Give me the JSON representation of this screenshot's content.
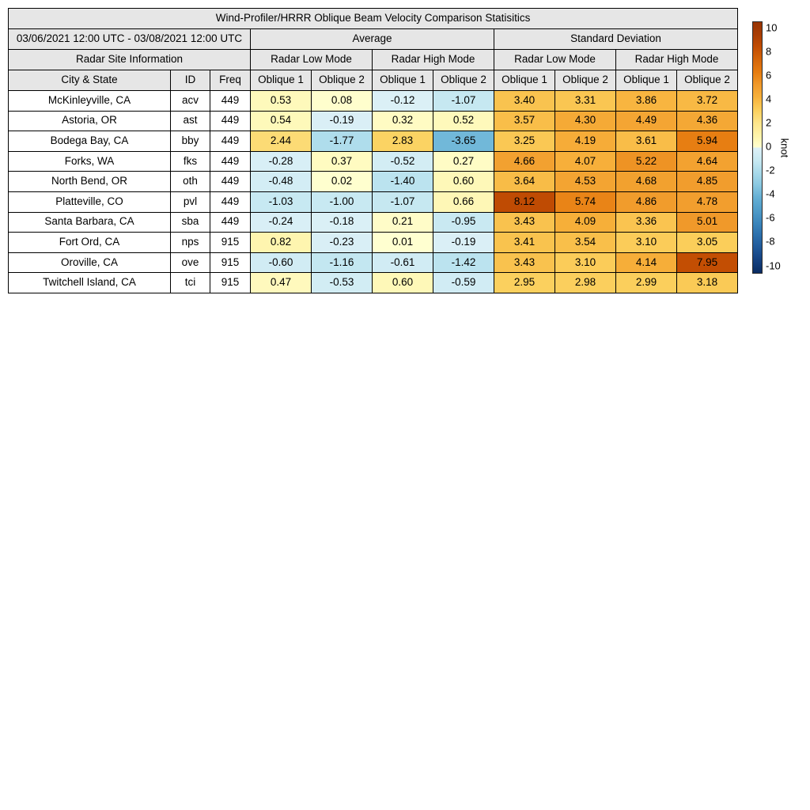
{
  "title": "Wind-Profiler/HRRR Oblique Beam Velocity Comparison Statisitics",
  "table": {
    "date_range": "03/06/2021 12:00 UTC - 03/08/2021 12:00 UTC",
    "avg_label": "Average",
    "std_label": "Standard Deviation",
    "site_info_label": "Radar Site Information",
    "mode_labels": [
      "Radar Low Mode",
      "Radar High Mode",
      "Radar Low Mode",
      "Radar High Mode"
    ],
    "col_labels": [
      "City & State",
      "ID",
      "Freq",
      "Oblique 1",
      "Oblique 2",
      "Oblique 1",
      "Oblique 2",
      "Oblique 1",
      "Oblique 2",
      "Oblique 1",
      "Oblique 2"
    ]
  },
  "colors": {
    "header_bg": "#e6e6e6",
    "cell_bg": "#ffffff",
    "border": "#000000"
  },
  "chart_data": {
    "type": "table",
    "title": "Wind-Profiler/HRRR Oblique Beam Velocity Comparison Statisitics",
    "subtitle_date_range": "03/06/2021 12:00 UTC - 03/08/2021 12:00 UTC",
    "value_groups": [
      "Average Radar Low Mode Oblique 1",
      "Average Radar Low Mode Oblique 2",
      "Average Radar High Mode Oblique 1",
      "Average Radar High Mode Oblique 2",
      "Std Dev Radar Low Mode Oblique 1",
      "Std Dev Radar Low Mode Oblique 2",
      "Std Dev Radar High Mode Oblique 1",
      "Std Dev Radar High Mode Oblique 2"
    ],
    "rows": [
      {
        "city": "McKinleyville, CA",
        "id": "acv",
        "freq": "449",
        "values": [
          0.53,
          0.08,
          -0.12,
          -1.07,
          3.4,
          3.31,
          3.86,
          3.72
        ]
      },
      {
        "city": "Astoria, OR",
        "id": "ast",
        "freq": "449",
        "values": [
          0.54,
          -0.19,
          0.32,
          0.52,
          3.57,
          4.3,
          4.49,
          4.36
        ]
      },
      {
        "city": "Bodega Bay, CA",
        "id": "bby",
        "freq": "449",
        "values": [
          2.44,
          -1.77,
          2.83,
          -3.65,
          3.25,
          4.19,
          3.61,
          5.94
        ]
      },
      {
        "city": "Forks, WA",
        "id": "fks",
        "freq": "449",
        "values": [
          -0.28,
          0.37,
          -0.52,
          0.27,
          4.66,
          4.07,
          5.22,
          4.64
        ]
      },
      {
        "city": "North Bend, OR",
        "id": "oth",
        "freq": "449",
        "values": [
          -0.48,
          0.02,
          -1.4,
          0.6,
          3.64,
          4.53,
          4.68,
          4.85
        ]
      },
      {
        "city": "Platteville, CO",
        "id": "pvl",
        "freq": "449",
        "values": [
          -1.03,
          -1.0,
          -1.07,
          0.66,
          8.12,
          5.74,
          4.86,
          4.78
        ]
      },
      {
        "city": "Santa Barbara, CA",
        "id": "sba",
        "freq": "449",
        "values": [
          -0.24,
          -0.18,
          0.21,
          -0.95,
          3.43,
          4.09,
          3.36,
          5.01
        ]
      },
      {
        "city": "Fort Ord, CA",
        "id": "nps",
        "freq": "915",
        "values": [
          0.82,
          -0.23,
          0.01,
          -0.19,
          3.41,
          3.54,
          3.1,
          3.05
        ]
      },
      {
        "city": "Oroville, CA",
        "id": "ove",
        "freq": "915",
        "values": [
          -0.6,
          -1.16,
          -0.61,
          -1.42,
          3.43,
          3.1,
          4.14,
          7.95
        ]
      },
      {
        "city": "Twitchell Island, CA",
        "id": "tci",
        "freq": "915",
        "values": [
          0.47,
          -0.53,
          0.6,
          -0.59,
          2.95,
          2.98,
          2.99,
          3.18
        ]
      }
    ],
    "colorbar": {
      "label": "knot",
      "min": -10,
      "max": 10,
      "ticks": [
        10,
        8,
        6,
        4,
        2,
        0,
        -2,
        -4,
        -6,
        -8,
        -10
      ],
      "orientation": "vertical"
    },
    "colormap": {
      "note": "piecewise-linear value-to-color map, hard break at 0; index = |value| in knots",
      "positive_anchors": [
        "#ffffd0",
        "#fef3a8",
        "#fde488",
        "#fbcf5c",
        "#f7b13b",
        "#f0992a",
        "#e67c10",
        "#d5660a",
        "#c24d03",
        "#a93d04",
        "#983404"
      ],
      "negative_anchors": [
        "#def1f7",
        "#c8e9f2",
        "#a8daea",
        "#89c8e1",
        "#64afd4",
        "#4f9cc9",
        "#3b86bc",
        "#2b6fac",
        "#1f5899",
        "#144180",
        "#0a2c62"
      ]
    }
  }
}
